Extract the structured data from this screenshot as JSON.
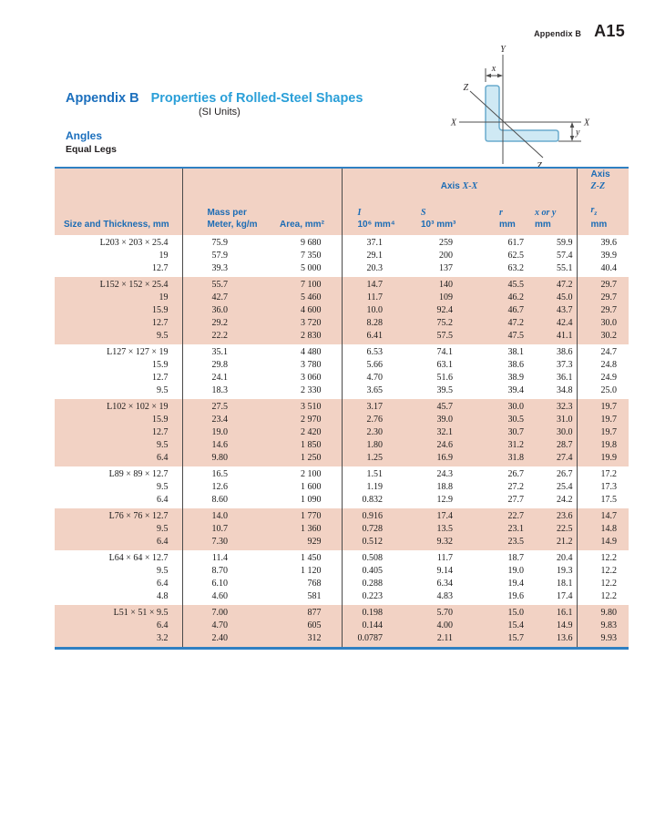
{
  "running_head": {
    "label": "Appendix B",
    "page_number": "A15"
  },
  "title": {
    "appendix": "Appendix B",
    "main": "Properties of Rolled-Steel Shapes",
    "units": "(SI Units)",
    "section": "Angles",
    "subsection": "Equal Legs"
  },
  "diagram": {
    "axis_y_top": "Y",
    "axis_y_bottom": "Y",
    "axis_x_left": "X",
    "axis_x_right": "X",
    "axis_z_upper": "Z",
    "axis_z_lower": "Z",
    "dim_x": "x",
    "dim_y": "y"
  },
  "table": {
    "header": {
      "axis_label_x": "Axis",
      "axis_x_math": "X-X",
      "axis_label_z": "Axis",
      "axis_z_math": "Z-Z",
      "size": "Size and Thickness, mm",
      "mass": [
        "Mass per",
        "Meter, kg/m"
      ],
      "area": "Area, mm²",
      "i_sym": "I",
      "i_unit": "10⁶ mm⁴",
      "s_sym": "S",
      "s_unit": "10³ mm³",
      "r_sym": "r",
      "r_unit": "mm",
      "xy_sym": "x or y",
      "xy_unit": "mm",
      "rz_sym": "r",
      "rz_sub": "z",
      "rz_unit": "mm"
    },
    "groups": [
      {
        "rows": [
          [
            "L203 × 203 × 25.4",
            "75.9",
            "9 680",
            "37.1",
            "259",
            "61.7",
            "59.9",
            "39.6"
          ],
          [
            "19",
            "57.9",
            "7 350",
            "29.1",
            "200",
            "62.5",
            "57.4",
            "39.9"
          ],
          [
            "12.7",
            "39.3",
            "5 000",
            "20.3",
            "137",
            "63.2",
            "55.1",
            "40.4"
          ]
        ]
      },
      {
        "rows": [
          [
            "L152 × 152 × 25.4",
            "55.7",
            "7 100",
            "14.7",
            "140",
            "45.5",
            "47.2",
            "29.7"
          ],
          [
            "19",
            "42.7",
            "5 460",
            "11.7",
            "109",
            "46.2",
            "45.0",
            "29.7"
          ],
          [
            "15.9",
            "36.0",
            "4 600",
            "10.0",
            "92.4",
            "46.7",
            "43.7",
            "29.7"
          ],
          [
            "12.7",
            "29.2",
            "3 720",
            "8.28",
            "75.2",
            "47.2",
            "42.4",
            "30.0"
          ],
          [
            "9.5",
            "22.2",
            "2 830",
            "6.41",
            "57.5",
            "47.5",
            "41.1",
            "30.2"
          ]
        ]
      },
      {
        "rows": [
          [
            "L127 × 127 × 19",
            "35.1",
            "4 480",
            "6.53",
            "74.1",
            "38.1",
            "38.6",
            "24.7"
          ],
          [
            "15.9",
            "29.8",
            "3 780",
            "5.66",
            "63.1",
            "38.6",
            "37.3",
            "24.8"
          ],
          [
            "12.7",
            "24.1",
            "3 060",
            "4.70",
            "51.6",
            "38.9",
            "36.1",
            "24.9"
          ],
          [
            "9.5",
            "18.3",
            "2 330",
            "3.65",
            "39.5",
            "39.4",
            "34.8",
            "25.0"
          ]
        ]
      },
      {
        "rows": [
          [
            "L102 × 102 × 19",
            "27.5",
            "3 510",
            "3.17",
            "45.7",
            "30.0",
            "32.3",
            "19.7"
          ],
          [
            "15.9",
            "23.4",
            "2 970",
            "2.76",
            "39.0",
            "30.5",
            "31.0",
            "19.7"
          ],
          [
            "12.7",
            "19.0",
            "2 420",
            "2.30",
            "32.1",
            "30.7",
            "30.0",
            "19.7"
          ],
          [
            "9.5",
            "14.6",
            "1 850",
            "1.80",
            "24.6",
            "31.2",
            "28.7",
            "19.8"
          ],
          [
            "6.4",
            "9.80",
            "1 250",
            "1.25",
            "16.9",
            "31.8",
            "27.4",
            "19.9"
          ]
        ]
      },
      {
        "rows": [
          [
            "L89 × 89 × 12.7",
            "16.5",
            "2 100",
            "1.51",
            "24.3",
            "26.7",
            "26.7",
            "17.2"
          ],
          [
            "9.5",
            "12.6",
            "1 600",
            "1.19",
            "18.8",
            "27.2",
            "25.4",
            "17.3"
          ],
          [
            "6.4",
            "8.60",
            "1 090",
            "0.832",
            "12.9",
            "27.7",
            "24.2",
            "17.5"
          ]
        ]
      },
      {
        "rows": [
          [
            "L76 × 76 × 12.7",
            "14.0",
            "1 770",
            "0.916",
            "17.4",
            "22.7",
            "23.6",
            "14.7"
          ],
          [
            "9.5",
            "10.7",
            "1 360",
            "0.728",
            "13.5",
            "23.1",
            "22.5",
            "14.8"
          ],
          [
            "6.4",
            "7.30",
            "929",
            "0.512",
            "9.32",
            "23.5",
            "21.2",
            "14.9"
          ]
        ]
      },
      {
        "rows": [
          [
            "L64 × 64 × 12.7",
            "11.4",
            "1 450",
            "0.508",
            "11.7",
            "18.7",
            "20.4",
            "12.2"
          ],
          [
            "9.5",
            "8.70",
            "1 120",
            "0.405",
            "9.14",
            "19.0",
            "19.3",
            "12.2"
          ],
          [
            "6.4",
            "6.10",
            "768",
            "0.288",
            "6.34",
            "19.4",
            "18.1",
            "12.2"
          ],
          [
            "4.8",
            "4.60",
            "581",
            "0.223",
            "4.83",
            "19.6",
            "17.4",
            "12.2"
          ]
        ]
      },
      {
        "rows": [
          [
            "L51 × 51 × 9.5",
            "7.00",
            "877",
            "0.198",
            "5.70",
            "15.0",
            "16.1",
            "9.80"
          ],
          [
            "6.4",
            "4.70",
            "605",
            "0.144",
            "4.00",
            "15.4",
            "14.9",
            "9.83"
          ],
          [
            "3.2",
            "2.40",
            "312",
            "0.0787",
            "2.11",
            "15.7",
            "13.6",
            "9.93"
          ]
        ]
      }
    ]
  },
  "colors": {
    "table_fill_pink": "#f2d2c4",
    "table_border_blue": "#2f80c3",
    "header_text_blue": "#1b6cb5",
    "title_blue_dark": "#1b6fbd",
    "title_blue_light": "#2a9fd8",
    "diagram_fill": "#cfe9f4",
    "diagram_stroke": "#6aabcd"
  }
}
